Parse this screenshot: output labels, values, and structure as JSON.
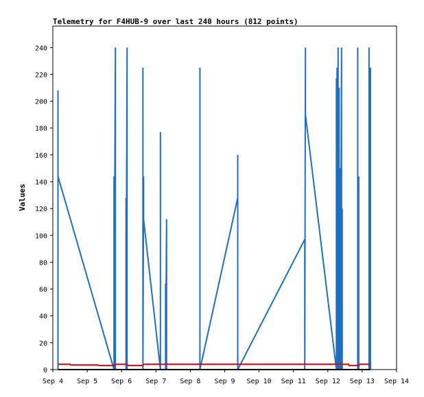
{
  "chart_data": {
    "type": "line",
    "title": "Telemetry for F4HUB-9 over last 240 hours (812 points)",
    "xlabel": "",
    "ylabel": "Values",
    "x_ticks": [
      "Sep 4",
      "Sep 5",
      "Sep 6",
      "Sep 7",
      "Sep 8",
      "Sep 9",
      "Sep 10",
      "Sep 11",
      "Sep 12",
      "Sep 13",
      "Sep 14"
    ],
    "xlim": [
      "Sep 4",
      "Sep 14"
    ],
    "y_ticks": [
      0,
      20,
      40,
      60,
      80,
      100,
      120,
      140,
      160,
      180,
      200,
      220,
      240
    ],
    "ylim": [
      0,
      256
    ],
    "grid": false,
    "legend": "none",
    "colors": {
      "primary": "#1f6fbf",
      "secondary": "#e00000"
    },
    "series": [
      {
        "color": "#1f6fbf",
        "points": [
          [
            4.15,
            0
          ],
          [
            4.15,
            208
          ],
          [
            4.15,
            144
          ],
          [
            5.78,
            0
          ],
          [
            5.78,
            144
          ],
          [
            5.78,
            0
          ],
          [
            5.82,
            240
          ],
          [
            5.82,
            0
          ],
          [
            6.13,
            0
          ],
          [
            6.13,
            128
          ],
          [
            6.13,
            0
          ],
          [
            6.16,
            240
          ],
          [
            6.16,
            0
          ],
          [
            6.62,
            0
          ],
          [
            6.62,
            225
          ],
          [
            6.62,
            0
          ],
          [
            6.64,
            144
          ],
          [
            6.64,
            112
          ],
          [
            7.13,
            0
          ],
          [
            7.13,
            177
          ],
          [
            7.13,
            0
          ],
          [
            7.28,
            0
          ],
          [
            7.28,
            64
          ],
          [
            7.28,
            0
          ],
          [
            7.31,
            112
          ],
          [
            7.31,
            0
          ],
          [
            8.28,
            0
          ],
          [
            8.28,
            225
          ],
          [
            8.28,
            0
          ],
          [
            9.38,
            128
          ],
          [
            9.38,
            0
          ],
          [
            9.38,
            160
          ],
          [
            9.38,
            0
          ],
          [
            11.33,
            97
          ],
          [
            11.33,
            0
          ],
          [
            11.35,
            240
          ],
          [
            11.35,
            190
          ],
          [
            12.25,
            0
          ],
          [
            12.25,
            217
          ],
          [
            12.25,
            0
          ],
          [
            12.27,
            225
          ],
          [
            12.27,
            0
          ],
          [
            12.3,
            240
          ],
          [
            12.3,
            0
          ],
          [
            12.33,
            210
          ],
          [
            12.33,
            0
          ],
          [
            12.35,
            150
          ],
          [
            12.35,
            0
          ],
          [
            12.37,
            90
          ],
          [
            12.37,
            0
          ],
          [
            12.4,
            240
          ],
          [
            12.4,
            0
          ],
          [
            12.42,
            120
          ],
          [
            12.42,
            0
          ],
          [
            12.87,
            0
          ],
          [
            12.87,
            240
          ],
          [
            12.87,
            0
          ],
          [
            12.9,
            144
          ],
          [
            12.9,
            0
          ],
          [
            13.2,
            0
          ],
          [
            13.2,
            240
          ],
          [
            13.2,
            0
          ],
          [
            13.24,
            225
          ],
          [
            13.24,
            0
          ]
        ]
      },
      {
        "color": "#e00000",
        "points": [
          [
            4.15,
            4
          ],
          [
            4.5,
            4
          ],
          [
            4.52,
            3.5
          ],
          [
            5.3,
            3.5
          ],
          [
            5.35,
            3
          ],
          [
            5.8,
            3
          ],
          [
            5.82,
            4
          ],
          [
            6.15,
            4
          ],
          [
            6.2,
            3
          ],
          [
            6.62,
            3
          ],
          [
            6.65,
            4
          ],
          [
            12.6,
            4
          ],
          [
            12.62,
            3
          ],
          [
            12.9,
            3
          ],
          [
            12.92,
            4
          ],
          [
            13.24,
            4
          ]
        ]
      },
      {
        "color": "#000000",
        "points": [
          [
            4.15,
            0
          ],
          [
            13.24,
            0
          ]
        ]
      }
    ]
  }
}
